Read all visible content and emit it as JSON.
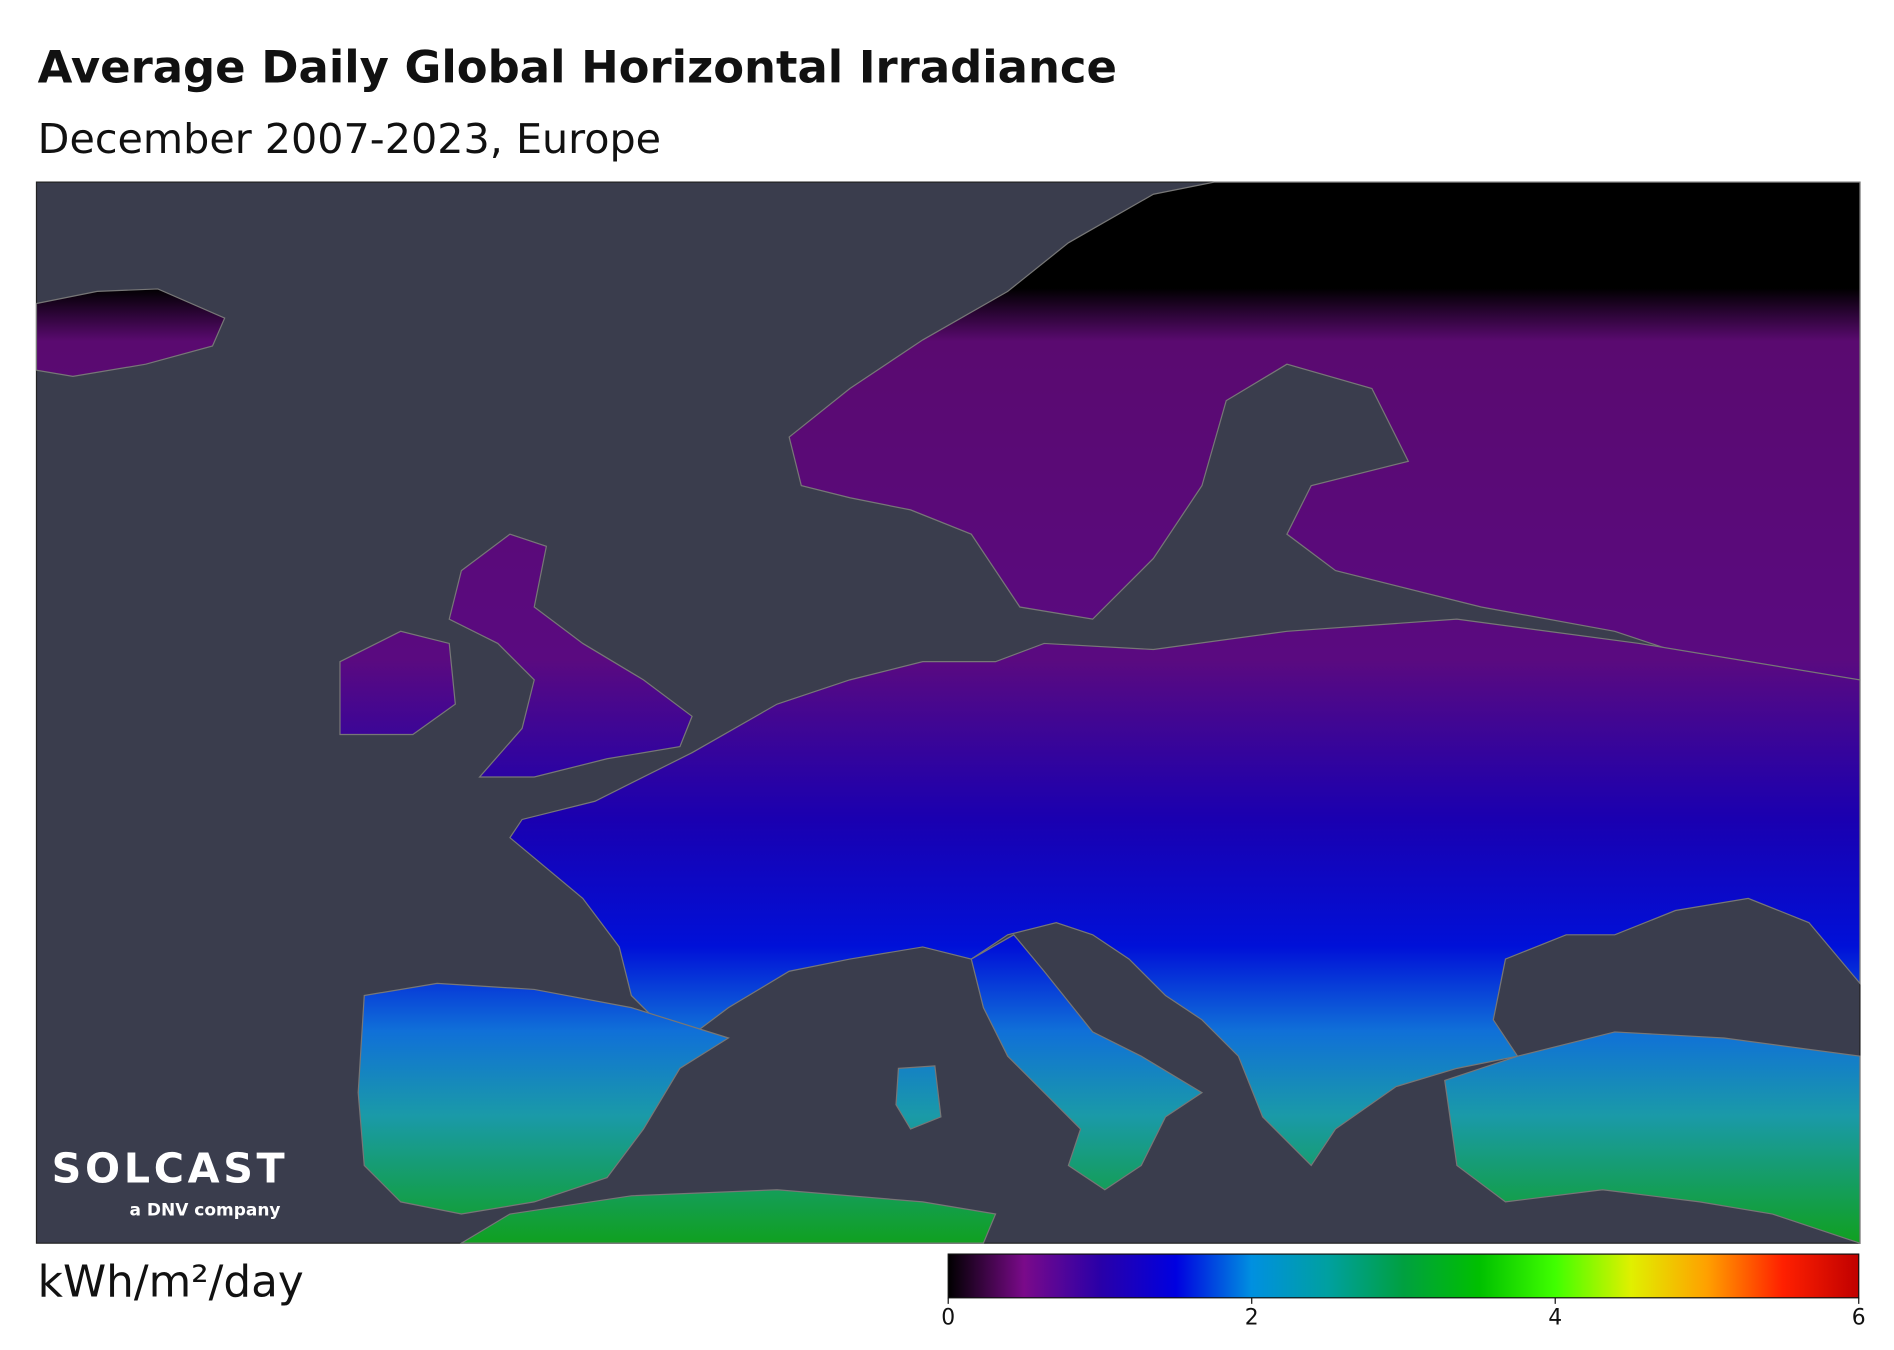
{
  "title": "Average Daily Global Horizontal Irradiance",
  "subtitle": "December 2007-2023, Europe",
  "logo": {
    "name": "SOLCAST",
    "tagline": "a DNV company"
  },
  "colorbar": {
    "label": "kWh/m²/day",
    "lim": [
      0,
      6
    ],
    "ticks": [
      0,
      2,
      4,
      6
    ],
    "colors": [
      "#000000",
      "#7a0a8a",
      "#2a00a8",
      "#0000e0",
      "#0090e0",
      "#00a0a0",
      "#00a040",
      "#00c000",
      "#40ff00",
      "#e0f000",
      "#ffa000",
      "#ff2000",
      "#c00000"
    ]
  }
}
